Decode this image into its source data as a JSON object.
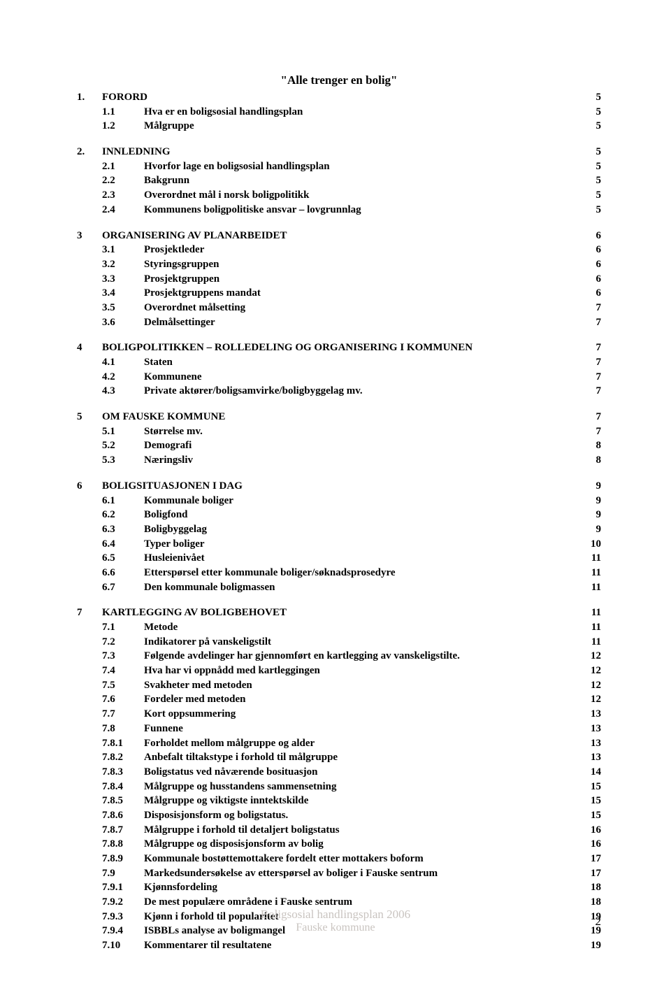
{
  "title_quote": "\"Alle trenger en bolig\"",
  "footer": {
    "line1": "Boligsosial handlingsplan 2006",
    "line2": "Fauske kommune"
  },
  "page_number": "2",
  "toc": [
    {
      "type": "chapter",
      "num": "1.",
      "title": "FORORD",
      "page": "5"
    },
    {
      "type": "sub",
      "num": "1.1",
      "title": "Hva er en boligsosial handlingsplan",
      "page": "5"
    },
    {
      "type": "sub",
      "num": "1.2",
      "title": "Målgruppe",
      "page": "5"
    },
    {
      "type": "gap"
    },
    {
      "type": "chapter",
      "num": "2.",
      "title": "INNLEDNING",
      "page": "5"
    },
    {
      "type": "sub",
      "num": "2.1",
      "title": "Hvorfor lage en boligsosial handlingsplan",
      "page": "5"
    },
    {
      "type": "sub",
      "num": "2.2",
      "title": "Bakgrunn",
      "page": "5"
    },
    {
      "type": "sub",
      "num": "2.3",
      "title": "Overordnet mål i norsk boligpolitikk",
      "page": "5"
    },
    {
      "type": "sub",
      "num": "2.4",
      "title": "Kommunens boligpolitiske ansvar – lovgrunnlag",
      "page": "5"
    },
    {
      "type": "gap"
    },
    {
      "type": "chapter",
      "num": "3",
      "title": "ORGANISERING AV PLANARBEIDET",
      "page": "6"
    },
    {
      "type": "sub",
      "num": "3.1",
      "title": "Prosjektleder",
      "page": "6"
    },
    {
      "type": "sub",
      "num": "3.2",
      "title": "Styringsgruppen",
      "page": "6"
    },
    {
      "type": "sub",
      "num": "3.3",
      "title": "Prosjektgruppen",
      "page": "6"
    },
    {
      "type": "sub",
      "num": "3.4",
      "title": "Prosjektgruppens mandat",
      "page": "6"
    },
    {
      "type": "sub",
      "num": "3.5",
      "title": "Overordnet målsetting",
      "page": "7"
    },
    {
      "type": "sub",
      "num": "3.6",
      "title": "Delmålsettinger",
      "page": "7"
    },
    {
      "type": "gap"
    },
    {
      "type": "chapter",
      "num": "4",
      "title": "BOLIGPOLITIKKEN – ROLLEDELING OG ORGANISERING I KOMMUNEN",
      "page": "7"
    },
    {
      "type": "sub",
      "num": "4.1",
      "title": "Staten",
      "page": "7"
    },
    {
      "type": "sub",
      "num": "4.2",
      "title": "Kommunene",
      "page": "7"
    },
    {
      "type": "sub",
      "num": "4.3",
      "title": "Private aktører/boligsamvirke/boligbyggelag mv.",
      "page": "7"
    },
    {
      "type": "gap"
    },
    {
      "type": "chapter",
      "num": "5",
      "title": "OM FAUSKE KOMMUNE",
      "page": "7"
    },
    {
      "type": "sub",
      "num": "5.1",
      "title": "Størrelse mv.",
      "page": "7"
    },
    {
      "type": "sub",
      "num": "5.2",
      "title": "Demografi",
      "page": "8"
    },
    {
      "type": "sub",
      "num": "5.3",
      "title": "Næringsliv",
      "page": "8"
    },
    {
      "type": "gap"
    },
    {
      "type": "chapter",
      "num": "6",
      "title": "BOLIGSITUASJONEN I DAG",
      "page": "9"
    },
    {
      "type": "sub",
      "num": "6.1",
      "title": "Kommunale boliger",
      "page": "9"
    },
    {
      "type": "sub",
      "num": "6.2",
      "title": "Boligfond",
      "page": "9"
    },
    {
      "type": "sub",
      "num": "6.3",
      "title": "Boligbyggelag",
      "page": "9"
    },
    {
      "type": "sub",
      "num": "6.4",
      "title": "Typer boliger",
      "page": "10"
    },
    {
      "type": "sub",
      "num": "6.5",
      "title": "Husleienivået",
      "page": "11"
    },
    {
      "type": "sub",
      "num": "6.6",
      "title": "Etterspørsel etter kommunale boliger/søknadsprosedyre",
      "page": "11"
    },
    {
      "type": "sub",
      "num": "6.7",
      "title": "Den kommunale boligmassen",
      "page": "11"
    },
    {
      "type": "gap"
    },
    {
      "type": "chapter",
      "num": "7",
      "title": "KARTLEGGING AV BOLIGBEHOVET",
      "page": "11"
    },
    {
      "type": "sub",
      "num": "7.1",
      "title": "Metode",
      "page": "11"
    },
    {
      "type": "sub",
      "num": "7.2",
      "title": "Indikatorer på vanskeligstilt",
      "page": "11"
    },
    {
      "type": "sub",
      "num": "7.3",
      "title": "Følgende avdelinger har gjennomført en kartlegging av vanskeligstilte.",
      "page": "12"
    },
    {
      "type": "sub",
      "num": "7.4",
      "title": "Hva har vi oppnådd med kartleggingen",
      "page": "12"
    },
    {
      "type": "sub",
      "num": "7.5",
      "title": "Svakheter med metoden",
      "page": "12"
    },
    {
      "type": "sub",
      "num": "7.6",
      "title": "Fordeler med metoden",
      "page": "12"
    },
    {
      "type": "sub",
      "num": "7.7",
      "title": "Kort oppsummering",
      "page": "13"
    },
    {
      "type": "sub",
      "num": "7.8",
      "title": "Funnene",
      "page": "13"
    },
    {
      "type": "sub",
      "num": "7.8.1",
      "title": "Forholdet mellom målgruppe og alder",
      "page": "13"
    },
    {
      "type": "sub",
      "num": "7.8.2",
      "title": "Anbefalt tiltakstype i forhold til målgruppe",
      "page": "13"
    },
    {
      "type": "sub",
      "num": "7.8.3",
      "title": "Boligstatus ved nåværende bosituasjon",
      "page": "14"
    },
    {
      "type": "sub",
      "num": "7.8.4",
      "title": "Målgruppe og husstandens sammensetning",
      "page": "15"
    },
    {
      "type": "sub",
      "num": "7.8.5",
      "title": "Målgruppe og viktigste inntektskilde",
      "page": "15"
    },
    {
      "type": "sub",
      "num": "7.8.6",
      "title": "Disposisjonsform og boligstatus.",
      "page": "15"
    },
    {
      "type": "sub",
      "num": "7.8.7",
      "title": "Målgruppe i forhold til detaljert boligstatus",
      "page": "16"
    },
    {
      "type": "sub",
      "num": "7.8.8",
      "title": "Målgruppe og disposisjonsform av bolig",
      "page": "16"
    },
    {
      "type": "sub",
      "num": "7.8.9",
      "title": "Kommunale bostøttemottakere fordelt etter mottakers boform",
      "page": "17"
    },
    {
      "type": "sub",
      "num": "7.9",
      "title": "Markedsundersøkelse av etterspørsel av boliger i Fauske sentrum",
      "page": "17"
    },
    {
      "type": "sub",
      "num": "7.9.1",
      "title": "Kjønnsfordeling",
      "page": "18"
    },
    {
      "type": "sub",
      "num": "7.9.2",
      "title": "De mest populære områdene i Fauske sentrum",
      "page": "18"
    },
    {
      "type": "sub",
      "num": "7.9.3",
      "title": "Kjønn i forhold til popularitet",
      "page": "19"
    },
    {
      "type": "sub",
      "num": "7.9.4",
      "title": "ISBBLs analyse av boligmangel",
      "page": "19"
    },
    {
      "type": "sub",
      "num": "7.10",
      "title": "Kommentarer til resultatene",
      "page": "19"
    }
  ]
}
